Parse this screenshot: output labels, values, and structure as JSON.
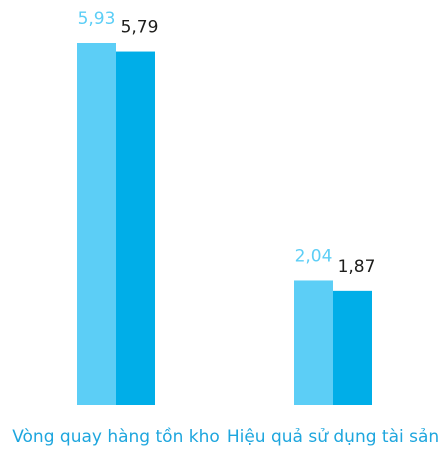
{
  "chart_data": {
    "type": "bar",
    "categories": [
      "Vòng quay hàng tồn kho",
      "Hiệu quả sử dụng tài sản"
    ],
    "series": [
      {
        "color": "#5ccef6",
        "label_color": "#5ccef6",
        "values": [
          5.93,
          2.04
        ],
        "value_labels": [
          "5,93",
          "2,04"
        ]
      },
      {
        "color": "#00aee8",
        "label_color": "#1d1d1b",
        "values": [
          5.79,
          1.87
        ],
        "value_labels": [
          "5,79",
          "1,87"
        ]
      }
    ],
    "category_label_color": "#1ea6de"
  }
}
